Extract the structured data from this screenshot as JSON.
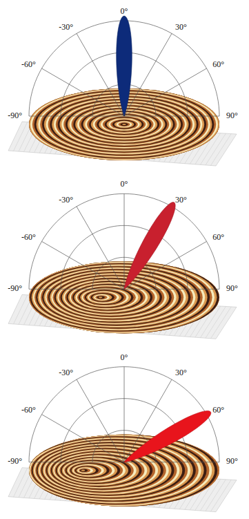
{
  "chart_data": [
    {
      "type": "polar",
      "xlim": [
        -90,
        90
      ],
      "xticks": [
        {
          "value": -90,
          "label": "-90°"
        },
        {
          "value": -60,
          "label": "-60°"
        },
        {
          "value": -30,
          "label": "-30°"
        },
        {
          "value": 0,
          "label": "0°"
        },
        {
          "value": 30,
          "label": "30°"
        },
        {
          "value": 60,
          "label": "60°"
        },
        {
          "value": 90,
          "label": "90°"
        }
      ],
      "beam_angle": 0,
      "color": "#0d2b7a"
    },
    {
      "type": "polar",
      "xlim": [
        -90,
        90
      ],
      "xticks": [
        {
          "value": -90,
          "label": "-90°"
        },
        {
          "value": -60,
          "label": "-60°"
        },
        {
          "value": -30,
          "label": "-30°"
        },
        {
          "value": 0,
          "label": "0°"
        },
        {
          "value": 30,
          "label": "30°"
        },
        {
          "value": 60,
          "label": "60°"
        },
        {
          "value": 90,
          "label": "90°"
        }
      ],
      "beam_angle": 30,
      "color": "#c8202e"
    },
    {
      "type": "polar",
      "xlim": [
        -90,
        90
      ],
      "xticks": [
        {
          "value": -90,
          "label": "-90°"
        },
        {
          "value": -60,
          "label": "-60°"
        },
        {
          "value": -30,
          "label": "-30°"
        },
        {
          "value": 0,
          "label": "0°"
        },
        {
          "value": 30,
          "label": "30°"
        },
        {
          "value": 60,
          "label": "60°"
        },
        {
          "value": 90,
          "label": "90°"
        }
      ],
      "beam_angle": 60,
      "color": "#e8141c"
    }
  ]
}
